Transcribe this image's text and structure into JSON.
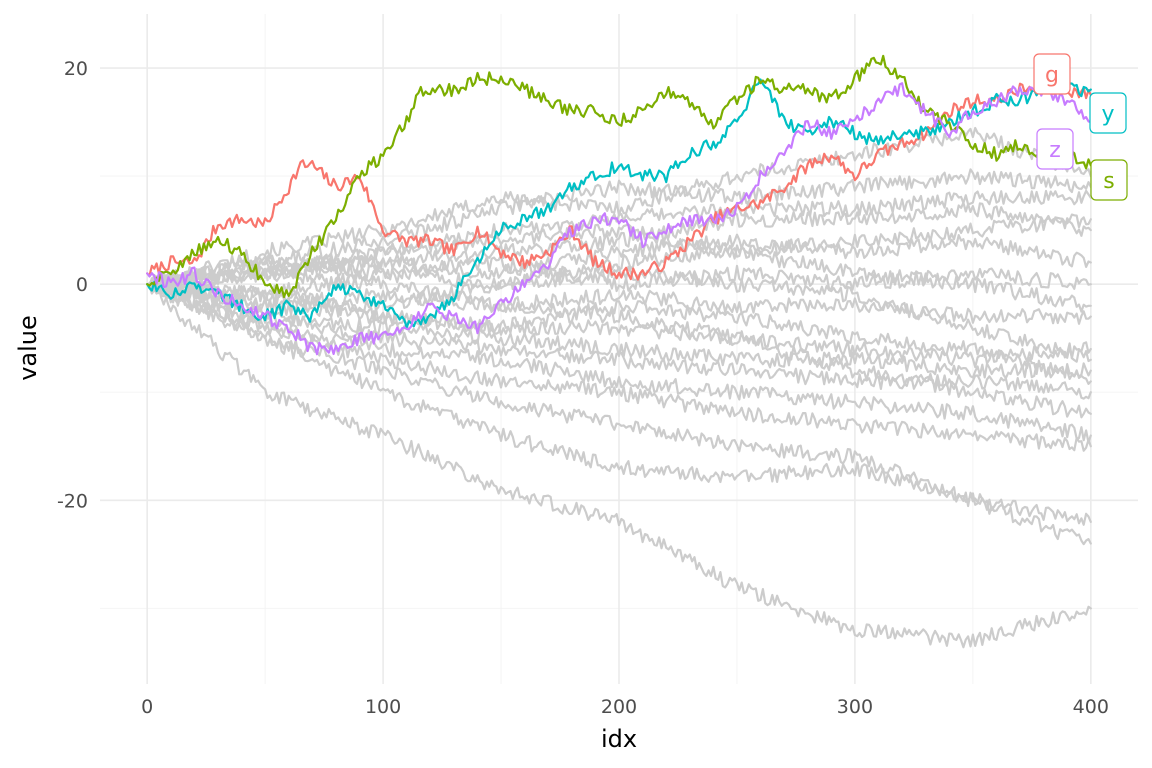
{
  "chart_data": {
    "type": "line",
    "title": "",
    "xlabel": "idx",
    "ylabel": "value",
    "xlim": [
      -20,
      420
    ],
    "ylim": [
      -37,
      25
    ],
    "x_ticks": [
      0,
      100,
      200,
      300,
      400
    ],
    "x_tick_labels": [
      "0",
      "100",
      "200",
      "300",
      "400"
    ],
    "y_ticks": [
      -20,
      0,
      20
    ],
    "y_tick_labels": [
      "-20",
      "0",
      "20"
    ],
    "grid": true,
    "legend": "none",
    "background_series_color": "#cccccc",
    "highlighted_series": [
      {
        "name": "g",
        "color": "#F8766D",
        "x": [
          0,
          10,
          20,
          30,
          40,
          50,
          60,
          65,
          70,
          80,
          90,
          100,
          110,
          120,
          130,
          140,
          150,
          160,
          170,
          180,
          190,
          200,
          210,
          220,
          230,
          240,
          250,
          260,
          270,
          280,
          290,
          300,
          310,
          320,
          330,
          340,
          350,
          360,
          370,
          380,
          390,
          400
        ],
        "y": [
          1,
          2,
          2,
          5.5,
          6,
          5.5,
          9,
          11,
          11,
          9,
          10,
          5,
          4,
          4,
          3,
          5,
          3,
          2,
          3,
          5,
          2,
          1,
          1,
          2,
          4,
          6,
          7,
          7.5,
          9,
          11,
          12,
          10,
          12,
          13,
          14,
          16,
          17,
          17,
          18,
          18,
          18,
          17.5
        ]
      },
      {
        "name": "y",
        "color": "#00BFC4",
        "x": [
          0,
          10,
          20,
          30,
          40,
          50,
          60,
          70,
          80,
          90,
          100,
          110,
          120,
          130,
          140,
          150,
          160,
          170,
          180,
          190,
          200,
          210,
          220,
          230,
          240,
          250,
          260,
          270,
          280,
          290,
          300,
          310,
          320,
          330,
          340,
          350,
          360,
          370,
          380,
          390,
          400
        ],
        "y": [
          0,
          -1,
          0,
          -1,
          -2,
          -3,
          -2,
          -3,
          0,
          -1,
          -2,
          -4,
          -3,
          -1,
          2,
          5,
          6,
          7,
          9,
          10,
          11,
          10,
          10,
          12,
          13,
          15,
          19,
          15,
          14,
          15,
          14,
          13,
          14,
          14,
          15,
          16,
          17,
          17,
          18,
          18,
          18
        ]
      },
      {
        "name": "s",
        "color": "#7CAE00",
        "x": [
          0,
          10,
          20,
          30,
          40,
          50,
          60,
          70,
          80,
          90,
          100,
          110,
          115,
          120,
          130,
          140,
          150,
          160,
          170,
          180,
          190,
          200,
          210,
          220,
          230,
          240,
          250,
          260,
          270,
          280,
          290,
          300,
          310,
          320,
          330,
          340,
          350,
          360,
          370,
          380,
          390,
          400
        ],
        "y": [
          0,
          1,
          3,
          4,
          3,
          0,
          -1,
          3,
          6,
          10,
          12,
          15,
          18,
          18,
          18,
          19,
          19,
          18,
          17,
          16,
          16,
          15,
          16,
          18,
          17,
          15,
          17,
          19,
          18,
          18,
          17,
          19,
          21,
          19,
          16,
          15,
          13,
          12,
          13,
          12,
          12,
          11
        ]
      },
      {
        "name": "z",
        "color": "#C77CFF",
        "x": [
          0,
          10,
          20,
          30,
          40,
          50,
          60,
          70,
          80,
          90,
          100,
          110,
          120,
          130,
          140,
          150,
          160,
          170,
          180,
          190,
          200,
          210,
          220,
          230,
          240,
          250,
          260,
          270,
          280,
          290,
          300,
          310,
          320,
          330,
          340,
          350,
          360,
          370,
          380,
          390,
          400
        ],
        "y": [
          1,
          0,
          1,
          -1,
          -2,
          -3,
          -4,
          -6,
          -6,
          -5,
          -5,
          -4,
          -2,
          -3,
          -4,
          -2,
          0,
          2,
          5,
          6,
          6,
          4,
          5,
          6,
          6,
          7,
          10,
          12,
          15,
          14,
          15,
          17,
          18,
          16,
          14,
          16,
          17,
          18,
          18,
          17,
          15
        ]
      }
    ],
    "background_series": [
      {
        "x": [
          0,
          50,
          100,
          150,
          200,
          250,
          300,
          350,
          400
        ],
        "y": [
          0,
          3,
          5,
          8,
          7,
          10,
          12,
          14,
          10
        ]
      },
      {
        "x": [
          0,
          50,
          100,
          150,
          200,
          250,
          300,
          350,
          400
        ],
        "y": [
          0,
          2,
          4,
          7,
          9,
          8,
          9,
          10,
          9
        ]
      },
      {
        "x": [
          0,
          50,
          100,
          150,
          200,
          250,
          300,
          350,
          400
        ],
        "y": [
          0,
          1,
          3,
          5,
          6,
          7,
          7,
          8,
          8
        ]
      },
      {
        "x": [
          0,
          50,
          100,
          150,
          200,
          250,
          300,
          350,
          400
        ],
        "y": [
          0,
          2,
          2,
          3,
          4,
          6,
          6,
          7,
          5
        ]
      },
      {
        "x": [
          0,
          50,
          100,
          150,
          200,
          250,
          300,
          350,
          400
        ],
        "y": [
          0,
          1,
          2,
          1,
          3,
          4,
          3,
          4,
          2
        ]
      },
      {
        "x": [
          0,
          50,
          100,
          150,
          200,
          250,
          300,
          350,
          400
        ],
        "y": [
          0,
          -1,
          1,
          2,
          0,
          1,
          0,
          1,
          0
        ]
      },
      {
        "x": [
          0,
          50,
          100,
          150,
          200,
          250,
          300,
          350,
          400
        ],
        "y": [
          0,
          -2,
          -1,
          -2,
          -1,
          -2,
          -2,
          -3,
          -3
        ]
      },
      {
        "x": [
          0,
          50,
          100,
          150,
          200,
          250,
          300,
          350,
          400
        ],
        "y": [
          0,
          -2,
          -3,
          -4,
          -4,
          -5,
          -6,
          -7,
          -6
        ]
      },
      {
        "x": [
          0,
          50,
          100,
          150,
          200,
          250,
          300,
          350,
          400
        ],
        "y": [
          0,
          -3,
          -4,
          -5,
          -6,
          -7,
          -7,
          -8,
          -8
        ]
      },
      {
        "x": [
          0,
          50,
          100,
          150,
          200,
          250,
          300,
          350,
          400
        ],
        "y": [
          0,
          -3,
          -5,
          -6,
          -7,
          -8,
          -9,
          -9,
          -10
        ]
      },
      {
        "x": [
          0,
          50,
          100,
          150,
          200,
          250,
          300,
          350,
          400
        ],
        "y": [
          0,
          -4,
          -6,
          -7,
          -9,
          -10,
          -11,
          -12,
          -14
        ]
      },
      {
        "x": [
          0,
          50,
          100,
          150,
          200,
          250,
          300,
          350,
          400
        ],
        "y": [
          0,
          -4,
          -7,
          -9,
          -10,
          -12,
          -13,
          -14,
          -15
        ]
      },
      {
        "x": [
          0,
          50,
          100,
          150,
          200,
          250,
          300,
          350,
          400
        ],
        "y": [
          0,
          -5,
          -8,
          -11,
          -13,
          -15,
          -16,
          -20,
          -22
        ]
      },
      {
        "x": [
          0,
          50,
          100,
          150,
          200,
          250,
          300,
          350,
          400
        ],
        "y": [
          0,
          -5,
          -10,
          -14,
          -17,
          -18,
          -17,
          -20,
          -24
        ]
      },
      {
        "x": [
          0,
          50,
          100,
          150,
          200,
          250,
          300,
          350,
          400
        ],
        "y": [
          0,
          -10,
          -14,
          -19,
          -22,
          -28,
          -32,
          -33,
          -30
        ]
      },
      {
        "x": [
          0,
          50,
          100,
          150,
          200,
          250,
          300,
          350,
          400
        ],
        "y": [
          0,
          1,
          0,
          -2,
          -3,
          -5,
          -8,
          -10,
          -12
        ]
      },
      {
        "x": [
          0,
          50,
          100,
          150,
          200,
          250,
          300,
          350,
          400
        ],
        "y": [
          0,
          2,
          1,
          0,
          2,
          3,
          1,
          0,
          -2
        ]
      },
      {
        "x": [
          0,
          50,
          100,
          150,
          200,
          250,
          300,
          350,
          400
        ],
        "y": [
          0,
          -1,
          -2,
          0,
          1,
          0,
          -1,
          -4,
          -7
        ]
      },
      {
        "x": [
          0,
          50,
          100,
          150,
          200,
          250,
          300,
          350,
          400
        ],
        "y": [
          0,
          -1,
          -3,
          -4,
          -2,
          -3,
          -5,
          -6,
          -9
        ]
      },
      {
        "x": [
          0,
          50,
          100,
          150,
          200,
          250,
          300,
          350,
          400
        ],
        "y": [
          0,
          1,
          3,
          4,
          5,
          3,
          4,
          5,
          6
        ]
      }
    ]
  }
}
